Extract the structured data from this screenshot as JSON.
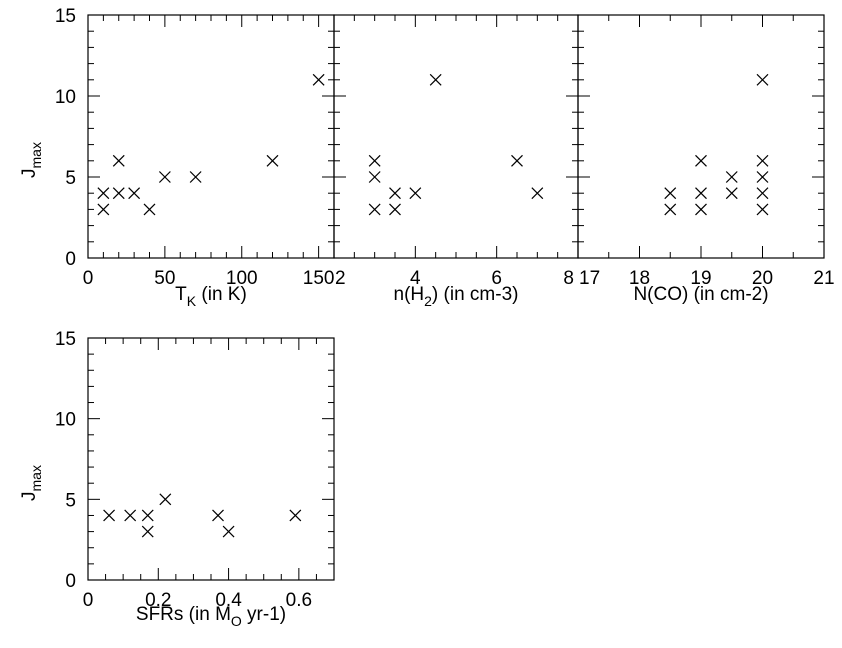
{
  "chart_data": [
    {
      "type": "scatter",
      "xlabel": {
        "main": "T",
        "sub": "K",
        "suffix": " (in K)"
      },
      "ylabel": {
        "main": "J",
        "sub": "max"
      },
      "xlim": [
        0,
        160
      ],
      "ylim": [
        0,
        15
      ],
      "xticks": [
        0,
        50,
        100,
        150
      ],
      "yticks": [
        0,
        5,
        10,
        15
      ],
      "x_minor": 10,
      "y_minor": 1,
      "points": [
        [
          10,
          4
        ],
        [
          10,
          3
        ],
        [
          20,
          6
        ],
        [
          20,
          4
        ],
        [
          30,
          4
        ],
        [
          40,
          3
        ],
        [
          50,
          5
        ],
        [
          70,
          5
        ],
        [
          120,
          6
        ],
        [
          150,
          11
        ]
      ]
    },
    {
      "type": "scatter",
      "xlabel": {
        "main": "n(H",
        "sub": "2",
        "suffix": ") (in cm-3)"
      },
      "ylabel": null,
      "xlim": [
        2,
        8
      ],
      "ylim": [
        0,
        15
      ],
      "xticks": [
        2,
        4,
        6,
        8
      ],
      "yticks": [
        0,
        5,
        10,
        15
      ],
      "x_minor": 0.5,
      "y_minor": 1,
      "points": [
        [
          3,
          6
        ],
        [
          3,
          5
        ],
        [
          3,
          3
        ],
        [
          3.5,
          4
        ],
        [
          3.5,
          3
        ],
        [
          4,
          4
        ],
        [
          4.5,
          11
        ],
        [
          6.5,
          6
        ],
        [
          7,
          4
        ]
      ]
    },
    {
      "type": "scatter",
      "xlabel": {
        "main": "N(CO) (in cm-2)",
        "sub": "",
        "suffix": ""
      },
      "ylabel": null,
      "xlim": [
        17,
        21
      ],
      "ylim": [
        0,
        15
      ],
      "xticks": [
        17,
        18,
        19,
        20,
        21
      ],
      "yticks": [
        0,
        5,
        10,
        15
      ],
      "x_minor": 0.5,
      "y_minor": 1,
      "points": [
        [
          18.5,
          4
        ],
        [
          18.5,
          3
        ],
        [
          19,
          6
        ],
        [
          19,
          4
        ],
        [
          19,
          3
        ],
        [
          19.5,
          5
        ],
        [
          19.5,
          4
        ],
        [
          20,
          11
        ],
        [
          20,
          6
        ],
        [
          20,
          5
        ],
        [
          20,
          4
        ],
        [
          20,
          3
        ]
      ]
    },
    {
      "type": "scatter",
      "xlabel": {
        "main": "SFRs (in M",
        "sub": "O",
        "suffix": " yr-1)"
      },
      "ylabel": {
        "main": "J",
        "sub": "max"
      },
      "xlim": [
        0,
        0.7
      ],
      "ylim": [
        0,
        15
      ],
      "xticks": [
        0,
        0.2,
        0.4,
        0.6
      ],
      "yticks": [
        0,
        5,
        10,
        15
      ],
      "x_minor": 0.05,
      "y_minor": 1,
      "points": [
        [
          0.06,
          4
        ],
        [
          0.12,
          4
        ],
        [
          0.17,
          4
        ],
        [
          0.17,
          3
        ],
        [
          0.22,
          5
        ],
        [
          0.37,
          4
        ],
        [
          0.4,
          3
        ],
        [
          0.59,
          4
        ]
      ]
    }
  ]
}
